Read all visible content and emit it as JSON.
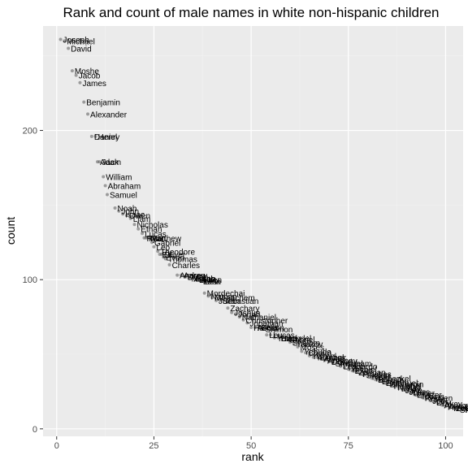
{
  "chart_data": {
    "type": "scatter",
    "title": "Rank and count of male names in white non-hispanic children",
    "xlabel": "rank",
    "ylabel": "count",
    "xlim": [
      -3.5,
      104.5
    ],
    "ylim": [
      -5,
      270
    ],
    "xticks": [
      0,
      25,
      50,
      75,
      100
    ],
    "yticks": [
      0,
      100,
      200
    ],
    "grid": true,
    "colors": {
      "panel": "#ebebeb",
      "grid_major": "#ffffff",
      "grid_minor": "#f2f2f2",
      "point": "#595959"
    },
    "labeled_points": [
      {
        "name": "Joseph",
        "rank": 1,
        "count": 261
      },
      {
        "name": "Michael",
        "rank": 2,
        "count": 260
      },
      {
        "name": "David",
        "rank": 3,
        "count": 255
      },
      {
        "name": "Moshe",
        "rank": 4,
        "count": 240
      },
      {
        "name": "Jacob",
        "rank": 5,
        "count": 237
      },
      {
        "name": "James",
        "rank": 6,
        "count": 232
      },
      {
        "name": "Benjamin",
        "rank": 7,
        "count": 219
      },
      {
        "name": "Alexander",
        "rank": 8,
        "count": 211
      },
      {
        "name": "Daniel",
        "rank": 9,
        "count": 196
      },
      {
        "name": "Henry",
        "rank": 10,
        "count": 196
      },
      {
        "name": "Adam",
        "rank": 10.5,
        "count": 179
      },
      {
        "name": "Jack",
        "rank": 11,
        "count": 179
      },
      {
        "name": "William",
        "rank": 12,
        "count": 169
      },
      {
        "name": "Abraham",
        "rank": 12.5,
        "count": 163
      },
      {
        "name": "Samuel",
        "rank": 13,
        "count": 157
      },
      {
        "name": "Noah",
        "rank": 15,
        "count": 148
      },
      {
        "name": "John",
        "rank": 16,
        "count": 146
      },
      {
        "name": "Isaac",
        "rank": 17,
        "count": 144
      },
      {
        "name": "Owen",
        "rank": 18,
        "count": 143
      },
      {
        "name": "Liam",
        "rank": 19,
        "count": 141
      },
      {
        "name": "Nicholas",
        "rank": 20,
        "count": 137
      },
      {
        "name": "Ethan",
        "rank": 21,
        "count": 134
      },
      {
        "name": "Lucas",
        "rank": 22,
        "count": 131
      },
      {
        "name": "Ryan",
        "rank": 22.5,
        "count": 128
      },
      {
        "name": "Max",
        "rank": 23,
        "count": 128
      },
      {
        "name": "Matthew",
        "rank": 23.5,
        "count": 128
      },
      {
        "name": "Gabriel",
        "rank": 24.5,
        "count": 125
      },
      {
        "name": "Leo",
        "rank": 25,
        "count": 122
      },
      {
        "name": "Theodore",
        "rank": 26,
        "count": 119
      },
      {
        "name": "Eli",
        "rank": 26.5,
        "count": 117
      },
      {
        "name": "Oliver",
        "rank": 27,
        "count": 117
      },
      {
        "name": "Evan",
        "rank": 27.5,
        "count": 115
      },
      {
        "name": "Thomas",
        "rank": 28,
        "count": 114
      },
      {
        "name": "Charles",
        "rank": 29,
        "count": 110
      },
      {
        "name": "Andrew",
        "rank": 31,
        "count": 103
      },
      {
        "name": "Aaron",
        "rank": 32,
        "count": 103
      },
      {
        "name": "Dylan",
        "rank": 33,
        "count": 102
      },
      {
        "name": "Mason",
        "rank": 34,
        "count": 101
      },
      {
        "name": "Elijah",
        "rank": 35,
        "count": 101
      },
      {
        "name": "Luke",
        "rank": 36,
        "count": 100
      },
      {
        "name": "Aiden",
        "rank": 36.5,
        "count": 100
      },
      {
        "name": "Leon",
        "rank": 37,
        "count": 99
      },
      {
        "name": "Levi",
        "rank": 37.5,
        "count": 99
      },
      {
        "name": "Mordechai",
        "rank": 38,
        "count": 91
      },
      {
        "name": "Nathan",
        "rank": 39,
        "count": 89
      },
      {
        "name": "Menachem",
        "rank": 40,
        "count": 88
      },
      {
        "name": "Julian",
        "rank": 41,
        "count": 86
      },
      {
        "name": "Sebastian",
        "rank": 42,
        "count": 86
      },
      {
        "name": "Zachary",
        "rank": 44,
        "count": 81
      },
      {
        "name": "Joshua",
        "rank": 45,
        "count": 78
      },
      {
        "name": "Jonah",
        "rank": 46,
        "count": 77
      },
      {
        "name": "Nathaniel",
        "rank": 47,
        "count": 75
      },
      {
        "name": "Christopher",
        "rank": 48,
        "count": 73
      },
      {
        "name": "Jonathan",
        "rank": 49,
        "count": 71
      },
      {
        "name": "Harrison",
        "rank": 50,
        "count": 68
      },
      {
        "name": "Asher",
        "rank": 51,
        "count": 68
      },
      {
        "name": "Felix",
        "rank": 52,
        "count": 68
      },
      {
        "name": "Shimon",
        "rank": 53,
        "count": 67
      },
      {
        "name": "Lev",
        "rank": 54,
        "count": 63
      },
      {
        "name": "Lucas",
        "rank": 55,
        "count": 63
      },
      {
        "name": "Yosef",
        "rank": 56,
        "count": 61
      },
      {
        "name": "Ezra",
        "rank": 57,
        "count": 61
      },
      {
        "name": "Mendel",
        "rank": 58,
        "count": 61
      },
      {
        "name": "Gabriel",
        "rank": 59,
        "count": 60
      },
      {
        "name": "Shalom",
        "rank": 60,
        "count": 58
      },
      {
        "name": "Yaakov",
        "rank": 61,
        "count": 57
      },
      {
        "name": "Moses",
        "rank": 62,
        "count": 55
      },
      {
        "name": "Yehuda",
        "rank": 63,
        "count": 52
      },
      {
        "name": "Chaim",
        "rank": 64,
        "count": 51
      },
      {
        "name": "Yisroel",
        "rank": 65,
        "count": 49
      },
      {
        "name": "Yitzchok",
        "rank": 66,
        "count": 48
      },
      {
        "name": "Eliezer",
        "rank": 67,
        "count": 48
      },
      {
        "name": "Aryeh",
        "rank": 68,
        "count": 47
      },
      {
        "name": "Anthony",
        "rank": 69,
        "count": 46
      },
      {
        "name": "Dovid",
        "rank": 70,
        "count": 45
      },
      {
        "name": "Shmuel",
        "rank": 71,
        "count": 44
      },
      {
        "name": "Avraham",
        "rank": 72,
        "count": 44
      },
      {
        "name": "Leonardo",
        "rank": 73,
        "count": 42
      },
      {
        "name": "Tzvi",
        "rank": 74,
        "count": 41
      },
      {
        "name": "Yechiel",
        "rank": 75,
        "count": 40
      },
      {
        "name": "Elliot",
        "rank": 76,
        "count": 39
      },
      {
        "name": "Zalman",
        "rank": 77,
        "count": 38
      },
      {
        "name": "Pinchas",
        "rank": 78,
        "count": 37
      },
      {
        "name": "Simon",
        "rank": 79,
        "count": 36
      },
      {
        "name": "Yosef",
        "rank": 80,
        "count": 35
      },
      {
        "name": "Yechezkel",
        "rank": 81,
        "count": 34
      },
      {
        "name": "Boruch",
        "rank": 82,
        "count": 33
      },
      {
        "name": "Eliyahu",
        "rank": 83,
        "count": 32
      },
      {
        "name": "Emanuel",
        "rank": 84,
        "count": 31
      },
      {
        "name": "Benjamin",
        "rank": 85,
        "count": 30
      },
      {
        "name": "Hershel",
        "rank": 86,
        "count": 29
      },
      {
        "name": "Naftali",
        "rank": 87,
        "count": 28
      },
      {
        "name": "Meir",
        "rank": 88,
        "count": 27
      },
      {
        "name": "Jake",
        "rank": 89,
        "count": 26
      },
      {
        "name": "Julius",
        "rank": 90,
        "count": 25
      },
      {
        "name": "Usher",
        "rank": 91,
        "count": 24
      },
      {
        "name": "Eliezer",
        "rank": 92,
        "count": 23
      },
      {
        "name": "Tobias",
        "rank": 93,
        "count": 22
      },
      {
        "name": "Reuven",
        "rank": 94,
        "count": 21
      },
      {
        "name": "Yoel",
        "rank": 95,
        "count": 20
      },
      {
        "name": "Joel",
        "rank": 96,
        "count": 19
      },
      {
        "name": "Dov",
        "rank": 97,
        "count": 18
      },
      {
        "name": "Yakov",
        "rank": 98,
        "count": 17
      },
      {
        "name": "Aharon",
        "rank": 99,
        "count": 16
      },
      {
        "name": "Avrohom",
        "rank": 100,
        "count": 15
      },
      {
        "name": "Yehoshua",
        "rank": 101,
        "count": 14
      },
      {
        "name": "Zev",
        "rank": 102,
        "count": 14
      },
      {
        "name": "Shlomo",
        "rank": 103,
        "count": 13
      },
      {
        "name": "Yonah",
        "rank": 104,
        "count": 13
      }
    ]
  }
}
